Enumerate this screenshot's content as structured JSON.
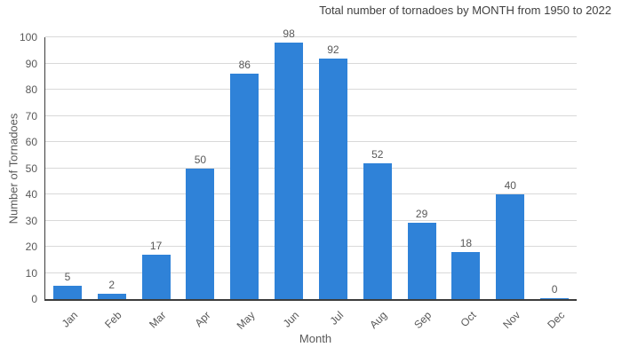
{
  "chart_data": {
    "type": "bar",
    "title": "Total number of tornadoes by MONTH from 1950 to 2022",
    "xlabel": "Month",
    "ylabel": "Number of Tornadoes",
    "categories": [
      "Jan",
      "Feb",
      "Mar",
      "Apr",
      "May",
      "Jun",
      "Jul",
      "Aug",
      "Sep",
      "Oct",
      "Nov",
      "Dec"
    ],
    "values": [
      5,
      2,
      17,
      50,
      86,
      98,
      92,
      52,
      29,
      18,
      40,
      0
    ],
    "data_labels": [
      5,
      2,
      17,
      50,
      86,
      98,
      92,
      52,
      29,
      18,
      40,
      0
    ],
    "ylim": [
      0,
      100
    ],
    "ytick_step": 10,
    "yticks": [
      0,
      10,
      20,
      30,
      40,
      50,
      60,
      70,
      80,
      90,
      100
    ],
    "grid": true,
    "legend": false,
    "colors": {
      "bar": "#2f82d8",
      "grid": "#d9d9d9",
      "axis": "#3c3c3c",
      "tick_text": "#595959",
      "title_text": "#404040"
    }
  }
}
